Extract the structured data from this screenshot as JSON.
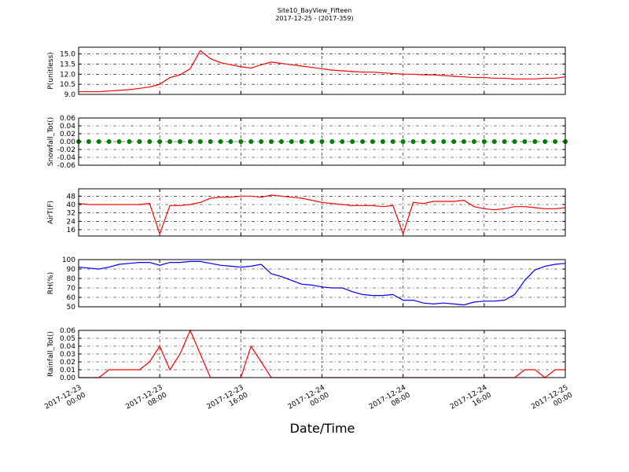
{
  "title": "Site10_BayView_Fifteen",
  "subtitle": "2017-12-25 - (2017-359)",
  "xlabel": "Date/Time",
  "xlim": [
    "2017-12-23 00:00",
    "2017-12-25 00:00"
  ],
  "xticks": [
    {
      "value": "2017-12-23 00:00",
      "label": [
        "2017-12-23",
        "00:00"
      ]
    },
    {
      "value": "2017-12-23 08:00",
      "label": [
        "2017-12-23",
        "08:00"
      ]
    },
    {
      "value": "2017-12-23 16:00",
      "label": [
        "2017-12-23",
        "16:00"
      ]
    },
    {
      "value": "2017-12-24 00:00",
      "label": [
        "2017-12-24",
        "00:00"
      ]
    },
    {
      "value": "2017-12-24 08:00",
      "label": [
        "2017-12-24",
        "08:00"
      ]
    },
    {
      "value": "2017-12-24 16:00",
      "label": [
        "2017-12-24",
        "16:00"
      ]
    },
    {
      "value": "2017-12-25 00:00",
      "label": [
        "2017-12-25",
        "00:00"
      ]
    }
  ],
  "x": [
    "2017-12-23 00:00",
    "2017-12-23 01:00",
    "2017-12-23 02:00",
    "2017-12-23 03:00",
    "2017-12-23 04:00",
    "2017-12-23 05:00",
    "2017-12-23 06:00",
    "2017-12-23 07:00",
    "2017-12-23 08:00",
    "2017-12-23 09:00",
    "2017-12-23 10:00",
    "2017-12-23 11:00",
    "2017-12-23 12:00",
    "2017-12-23 13:00",
    "2017-12-23 14:00",
    "2017-12-23 15:00",
    "2017-12-23 16:00",
    "2017-12-23 17:00",
    "2017-12-23 18:00",
    "2017-12-23 19:00",
    "2017-12-23 20:00",
    "2017-12-23 21:00",
    "2017-12-23 22:00",
    "2017-12-23 23:00",
    "2017-12-24 00:00",
    "2017-12-24 01:00",
    "2017-12-24 02:00",
    "2017-12-24 03:00",
    "2017-12-24 04:00",
    "2017-12-24 05:00",
    "2017-12-24 06:00",
    "2017-12-24 07:00",
    "2017-12-24 08:00",
    "2017-12-24 09:00",
    "2017-12-24 10:00",
    "2017-12-24 11:00",
    "2017-12-24 12:00",
    "2017-12-24 13:00",
    "2017-12-24 14:00",
    "2017-12-24 15:00",
    "2017-12-24 16:00",
    "2017-12-24 17:00",
    "2017-12-24 18:00",
    "2017-12-24 19:00",
    "2017-12-24 20:00",
    "2017-12-24 21:00",
    "2017-12-24 22:00",
    "2017-12-24 23:00",
    "2017-12-25 00:00"
  ],
  "chart_data": [
    {
      "type": "line",
      "ylabel": "P(unitless)",
      "grid": true,
      "ylim": [
        9.0,
        16.0
      ],
      "yticks": [
        {
          "value": 9,
          "label": "9.0"
        },
        10.5,
        {
          "value": 12,
          "label": "12.0"
        },
        13.5,
        {
          "value": 15,
          "label": "15.0"
        }
      ],
      "series": [
        {
          "color": "#ff0000",
          "values": [
            9.4,
            9.4,
            9.4,
            9.5,
            9.6,
            9.7,
            9.9,
            10.1,
            10.5,
            11.5,
            11.9,
            12.8,
            15.5,
            14.3,
            13.7,
            13.4,
            13.1,
            12.9,
            13.4,
            13.8,
            13.6,
            13.4,
            13.2,
            13.0,
            12.8,
            12.6,
            12.5,
            12.4,
            12.3,
            12.3,
            12.2,
            12.1,
            12.0,
            12.0,
            11.9,
            11.9,
            11.8,
            11.7,
            11.6,
            11.5,
            11.5,
            11.4,
            11.4,
            11.3,
            11.3,
            11.3,
            11.4,
            11.4,
            11.6
          ]
        }
      ]
    },
    {
      "type": "scatter",
      "ylabel": "Snowfall_Tot()",
      "grid": true,
      "ylim": [
        -0.06,
        0.06
      ],
      "yticks": [
        -0.06,
        -0.04,
        -0.02,
        {
          "value": 0,
          "label": "0.00"
        },
        0.02,
        0.04,
        0.06
      ],
      "series": [
        {
          "color": "#008000",
          "values": [
            0,
            0,
            0,
            0,
            0,
            0,
            0,
            0,
            0,
            0,
            0,
            0,
            0,
            0,
            0,
            0,
            0,
            0,
            0,
            0,
            0,
            0,
            0,
            0,
            0,
            0,
            0,
            0,
            0,
            0,
            0,
            0,
            0,
            0,
            0,
            0,
            0,
            0,
            0,
            0,
            0,
            0,
            0,
            0,
            0,
            0,
            0,
            0,
            0
          ]
        }
      ]
    },
    {
      "type": "line",
      "ylabel": "AirT(F)",
      "grid": true,
      "ylim": [
        10,
        55
      ],
      "yticks": [
        16,
        24,
        32,
        40,
        48
      ],
      "series": [
        {
          "color": "#ff0000",
          "values": [
            41,
            40,
            40,
            40,
            40,
            40,
            40,
            41,
            12,
            39,
            39,
            40,
            42,
            46,
            47,
            47,
            48,
            48,
            47,
            49,
            48,
            47,
            46,
            44,
            42,
            41,
            40,
            39,
            39,
            39,
            38,
            39,
            12,
            42,
            41,
            43,
            43,
            43,
            44,
            38,
            36,
            35,
            36,
            38,
            38,
            37,
            36,
            36,
            37
          ]
        }
      ]
    },
    {
      "type": "line",
      "ylabel": "RH(%)",
      "grid": true,
      "ylim": [
        50,
        100
      ],
      "yticks": [
        50,
        60,
        70,
        80,
        90,
        100
      ],
      "series": [
        {
          "color": "#0000ff",
          "values": [
            92,
            91,
            90,
            92,
            95,
            96,
            97,
            97,
            94,
            97,
            97,
            98,
            98,
            96,
            94,
            93,
            92,
            93,
            95,
            85,
            82,
            78,
            74,
            73,
            71,
            70,
            70,
            66,
            63,
            62,
            62,
            63,
            57,
            57,
            54,
            53,
            54,
            53,
            52,
            55,
            56,
            56,
            57,
            63,
            78,
            89,
            93,
            95,
            96
          ]
        }
      ]
    },
    {
      "type": "line",
      "ylabel": "Rainfall_Tot()",
      "grid": true,
      "ylim": [
        0,
        0.06
      ],
      "yticks": [
        {
          "value": 0,
          "label": "0.00"
        },
        0.01,
        0.02,
        0.03,
        0.04,
        0.05,
        0.06
      ],
      "series": [
        {
          "color": "#ff0000",
          "values": [
            0,
            0,
            0,
            0.01,
            0.01,
            0.01,
            0.01,
            0.02,
            0.04,
            0.01,
            0.03,
            0.06,
            0.03,
            0,
            0,
            0,
            0,
            0.04,
            0.02,
            0,
            0,
            0,
            0,
            0,
            0,
            0,
            0,
            0,
            0,
            0,
            0,
            0,
            0,
            0,
            0,
            0,
            0,
            0,
            0,
            0,
            0,
            0,
            0,
            0,
            0.01,
            0.01,
            0,
            0.01,
            0.01
          ]
        }
      ]
    }
  ]
}
